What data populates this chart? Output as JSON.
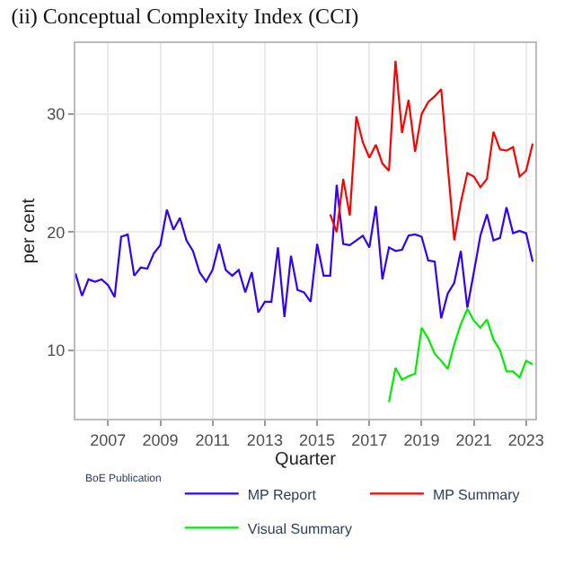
{
  "chart_data": {
    "type": "line",
    "title": "(ii) Conceptual Complexity Index (CCI)",
    "xlabel": "Quarter",
    "ylabel": "per cent",
    "legend_title": "BoE Publication",
    "legend": "bottom",
    "grid": true,
    "marker": "none",
    "line_style": "solid",
    "xlim": [
      2005.75,
      2023.35
    ],
    "xticks": [
      2007,
      2009,
      2011,
      2013,
      2015,
      2017,
      2019,
      2021,
      2023
    ],
    "ylim": [
      4.2,
      36
    ],
    "yticks": [
      10,
      20,
      30
    ],
    "series": [
      {
        "name": "MP Report",
        "color": "#3300ff",
        "x": [
          2005.75,
          2006,
          2006.25,
          2006.5,
          2006.75,
          2007,
          2007.25,
          2007.5,
          2007.75,
          2008,
          2008.25,
          2008.5,
          2008.75,
          2009,
          2009.25,
          2009.5,
          2009.75,
          2010,
          2010.25,
          2010.5,
          2010.75,
          2011,
          2011.25,
          2011.5,
          2011.75,
          2012,
          2012.25,
          2012.5,
          2012.75,
          2013,
          2013.25,
          2013.5,
          2013.75,
          2014,
          2014.25,
          2014.5,
          2014.75,
          2015,
          2015.25,
          2015.5,
          2015.75,
          2016,
          2016.25,
          2016.5,
          2016.75,
          2017,
          2017.25,
          2017.5,
          2017.75,
          2018,
          2018.25,
          2018.5,
          2018.75,
          2019,
          2019.25,
          2019.5,
          2019.75,
          2020,
          2020.25,
          2020.5,
          2020.75,
          2021,
          2021.25,
          2021.5,
          2021.75,
          2022,
          2022.25,
          2022.5,
          2022.75,
          2023,
          2023.25
        ],
        "values": [
          16.5,
          14.6,
          16.0,
          15.8,
          16.0,
          15.5,
          14.5,
          19.6,
          19.8,
          16.3,
          17.0,
          16.9,
          18.2,
          18.9,
          21.9,
          20.2,
          21.2,
          19.3,
          18.4,
          16.6,
          15.8,
          16.8,
          19.0,
          16.8,
          16.3,
          16.8,
          14.9,
          16.6,
          13.2,
          14.1,
          14.1,
          18.7,
          12.8,
          18.0,
          15.1,
          14.9,
          14.1,
          19.0,
          16.3,
          16.3,
          24.0,
          19.0,
          18.9,
          19.3,
          19.7,
          18.7,
          22.2,
          16.0,
          18.7,
          18.4,
          18.5,
          19.7,
          19.8,
          19.6,
          17.6,
          17.5,
          12.7,
          14.8,
          15.7,
          18.4,
          13.6,
          16.6,
          19.7,
          21.5,
          19.3,
          19.5,
          22.1,
          19.9,
          20.1,
          19.9,
          17.5
        ]
      },
      {
        "name": "MP Summary",
        "color": "#ff0000",
        "x": [
          2015.5,
          2015.75,
          2016,
          2016.25,
          2016.5,
          2016.75,
          2017,
          2017.25,
          2017.5,
          2017.75,
          2018,
          2018.25,
          2018.5,
          2018.75,
          2019,
          2019.25,
          2019.5,
          2019.75,
          2020,
          2020.25,
          2020.5,
          2020.75,
          2021,
          2021.25,
          2021.5,
          2021.75,
          2022,
          2022.25,
          2022.5,
          2022.75,
          2023,
          2023.25
        ],
        "values": [
          21.5,
          20.0,
          24.5,
          21.4,
          29.8,
          27.6,
          26.3,
          27.4,
          25.8,
          25.2,
          34.5,
          28.4,
          31.2,
          26.8,
          30.0,
          31.0,
          31.5,
          32.1,
          25.6,
          19.3,
          22.5,
          25.0,
          24.7,
          23.8,
          24.5,
          28.5,
          27.0,
          26.9,
          27.2,
          24.7,
          25.2,
          27.5
        ]
      },
      {
        "name": "Visual Summary",
        "color": "#00ee00",
        "x": [
          2017.75,
          2018,
          2018.25,
          2018.5,
          2018.75,
          2019,
          2019.25,
          2019.5,
          2019.75,
          2020,
          2020.25,
          2020.5,
          2020.75,
          2021,
          2021.25,
          2021.5,
          2021.75,
          2022,
          2022.25,
          2022.5,
          2022.75,
          2023,
          2023.25
        ],
        "values": [
          5.6,
          8.5,
          7.5,
          7.8,
          8.0,
          11.9,
          11.0,
          9.7,
          9.1,
          8.4,
          10.5,
          12.2,
          13.5,
          12.5,
          11.9,
          12.6,
          10.9,
          10.0,
          8.2,
          8.2,
          7.7,
          9.1,
          8.8
        ]
      }
    ]
  }
}
